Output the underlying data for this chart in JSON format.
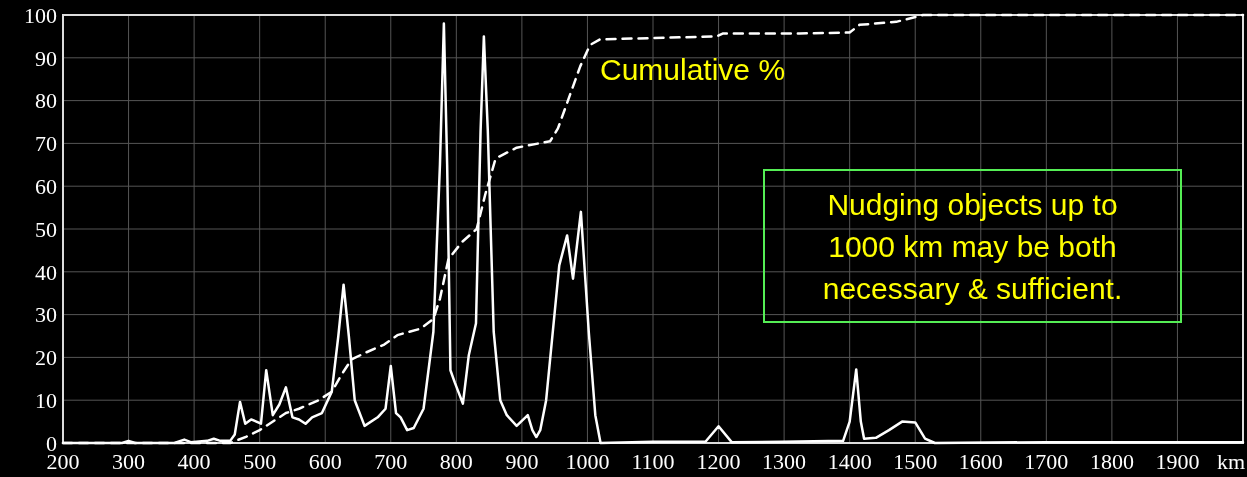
{
  "chart_data": {
    "type": "line",
    "xlim": [
      200,
      2000
    ],
    "ylim": [
      0,
      100
    ],
    "xticks": [
      200,
      300,
      400,
      500,
      600,
      700,
      800,
      900,
      1000,
      1100,
      1200,
      1300,
      1400,
      1500,
      1600,
      1700,
      1800,
      1900,
      {
        "value": 2000,
        "label": "km"
      }
    ],
    "yticks": [
      0,
      10,
      20,
      30,
      40,
      50,
      60,
      70,
      80,
      90,
      100
    ],
    "grid": true,
    "annotations": [
      "Nudging objects up to 1000 km may be both necessary & sufficient."
    ],
    "series": [
      {
        "color": "#ffffff",
        "line_style": "solid",
        "x": [
          200,
          290,
          300,
          310,
          370,
          385,
          395,
          420,
          430,
          440,
          455,
          462,
          470,
          478,
          487,
          495,
          502,
          510,
          520,
          530,
          540,
          550,
          560,
          570,
          580,
          595,
          610,
          620,
          628,
          636,
          645,
          660,
          680,
          692,
          700,
          708,
          715,
          725,
          735,
          750,
          765,
          775,
          781,
          786,
          791,
          798,
          810,
          819,
          830,
          837,
          842,
          848,
          857,
          867,
          877,
          892,
          909,
          916,
          922,
          928,
          937,
          957,
          969,
          978,
          990,
          1002,
          1012,
          1020,
          1100,
          1180,
          1200,
          1220,
          1300,
          1390,
          1400,
          1410,
          1417,
          1422,
          1440,
          1460,
          1480,
          1500,
          1515,
          1530,
          1700,
          2000
        ],
        "values": [
          0,
          0,
          0.5,
          0,
          0,
          0.8,
          0.2,
          0.5,
          1,
          0.5,
          0.5,
          2,
          9.6,
          4.5,
          5.5,
          5,
          4.5,
          17,
          6.5,
          9,
          13,
          6,
          5.5,
          4.5,
          6,
          7,
          12,
          25,
          37,
          25,
          10,
          4,
          6,
          8,
          18,
          7,
          6,
          3,
          3.5,
          8,
          26,
          65,
          98,
          65,
          17,
          14,
          9.2,
          20.5,
          28,
          73,
          95,
          73,
          26,
          10,
          6.5,
          4,
          6.5,
          3,
          1.4,
          3,
          10,
          41.5,
          48.5,
          38.4,
          54,
          26,
          6.5,
          0,
          0.3,
          0.3,
          3.9,
          0.2,
          0.3,
          0.5,
          5,
          17.2,
          5,
          1,
          1.2,
          3,
          5,
          4.8,
          1,
          0,
          0.2,
          0.2
        ]
      },
      {
        "name": "Cumulative %",
        "color": "#ffffff",
        "line_style": "dashed",
        "x": [
          200,
          455,
          480,
          500,
          540,
          560,
          590,
          610,
          625,
          640,
          660,
          690,
          710,
          745,
          765,
          775,
          788,
          809,
          831,
          844,
          860,
          892,
          943,
          955,
          989,
          1004,
          1019,
          1197,
          1207,
          1324,
          1400,
          1415,
          1471,
          1512,
          2000
        ],
        "values": [
          0,
          0,
          1.5,
          3,
          7,
          8,
          10,
          12,
          16,
          19.5,
          21,
          23,
          25.2,
          26.7,
          29,
          33.7,
          43,
          47,
          50,
          58,
          66.5,
          69,
          70.5,
          73.5,
          88,
          93,
          94.3,
          95,
          95.7,
          95.7,
          95.9,
          97.7,
          98.4,
          100,
          100
        ]
      }
    ]
  }
}
